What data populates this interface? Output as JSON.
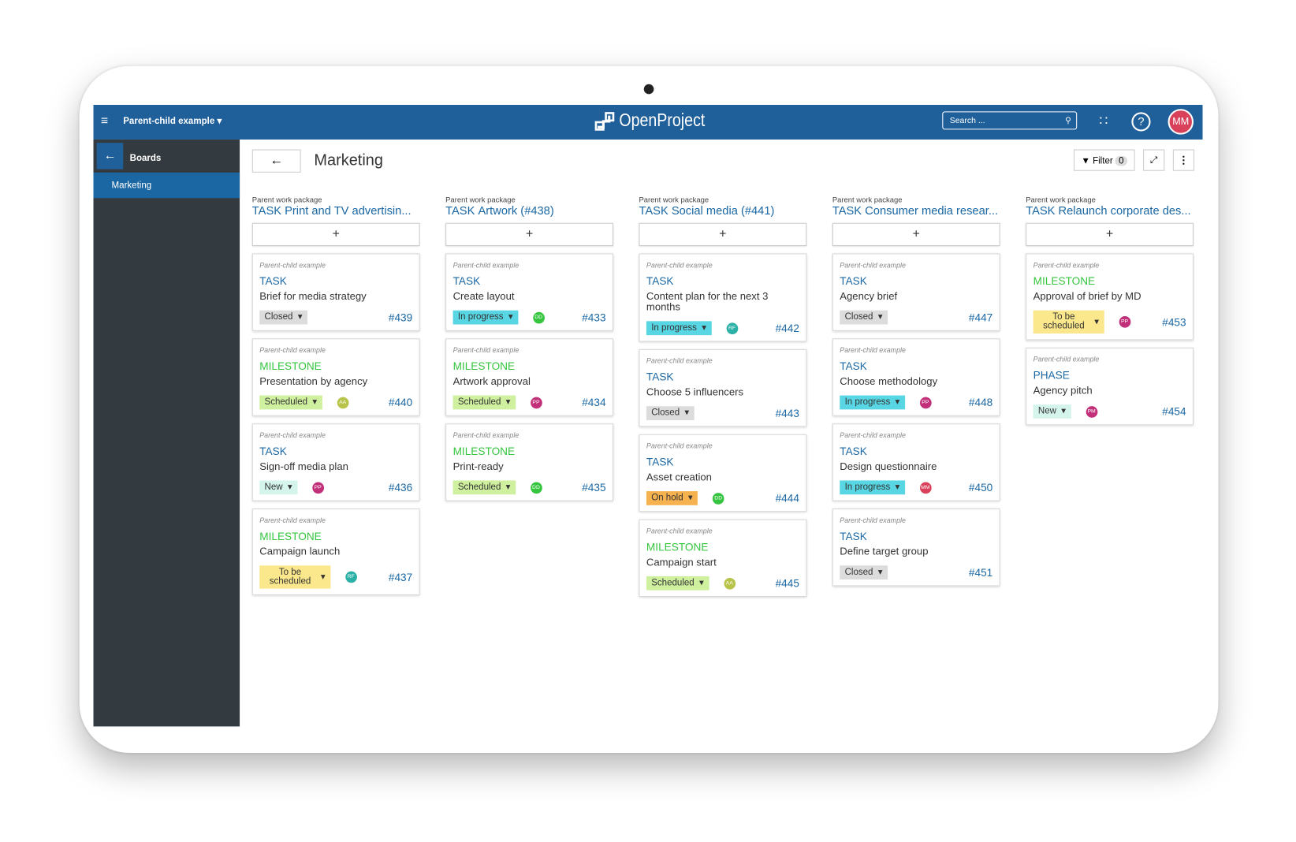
{
  "app": {
    "project": "Parent-child example",
    "logo": "OpenProject",
    "search_placeholder": "Search ...",
    "avatar": "MM"
  },
  "sidebar": {
    "title": "Boards",
    "items": [
      "Marketing"
    ]
  },
  "board": {
    "title": "Marketing",
    "filter_label": "Filter",
    "filter_count": "0",
    "add": "+"
  },
  "columns": [
    {
      "caption": "Parent work package",
      "type": "TASK",
      "title": "Print and TV advertisin...",
      "cards": [
        {
          "project": "Parent-child example",
          "type": "TASK",
          "type_color": "#1a67a3",
          "subject": "Brief for media strategy",
          "status": "Closed",
          "status_color": "#dcdcdc",
          "id": "#439"
        },
        {
          "project": "Parent-child example",
          "type": "MILESTONE",
          "type_color": "#35c53f",
          "subject": "Presentation by agency",
          "status": "Scheduled",
          "status_color": "#cff09e",
          "assignee": "AA",
          "assignee_color": "#b8c34a",
          "id": "#440"
        },
        {
          "project": "Parent-child example",
          "type": "TASK",
          "type_color": "#1a67a3",
          "subject": "Sign-off media plan",
          "status": "New",
          "status_color": "#d5f5ec",
          "assignee": "PP",
          "assignee_color": "#c2307a",
          "id": "#436"
        },
        {
          "project": "Parent-child example",
          "type": "MILESTONE",
          "type_color": "#35c53f",
          "subject": "Campaign launch",
          "status": "To be scheduled",
          "status_color": "#fbe88d",
          "assignee": "RF",
          "assignee_color": "#2bb0a6",
          "id": "#437"
        }
      ]
    },
    {
      "caption": "Parent work package",
      "type": "TASK",
      "title": "Artwork (#438)",
      "cards": [
        {
          "project": "Parent-child example",
          "type": "TASK",
          "type_color": "#1a67a3",
          "subject": "Create layout",
          "status": "In progress",
          "status_color": "#59d6e3",
          "assignee": "DD",
          "assignee_color": "#35c53f",
          "id": "#433"
        },
        {
          "project": "Parent-child example",
          "type": "MILESTONE",
          "type_color": "#35c53f",
          "subject": "Artwork approval",
          "status": "Scheduled",
          "status_color": "#cff09e",
          "assignee": "PP",
          "assignee_color": "#c2307a",
          "id": "#434"
        },
        {
          "project": "Parent-child example",
          "type": "MILESTONE",
          "type_color": "#35c53f",
          "subject": "Print-ready",
          "status": "Scheduled",
          "status_color": "#cff09e",
          "assignee": "DD",
          "assignee_color": "#35c53f",
          "id": "#435"
        }
      ]
    },
    {
      "caption": "Parent work package",
      "type": "TASK",
      "title": "Social media (#441)",
      "cards": [
        {
          "project": "Parent-child example",
          "type": "TASK",
          "type_color": "#1a67a3",
          "subject": "Content plan for the next 3 months",
          "status": "In progress",
          "status_color": "#59d6e3",
          "assignee": "RF",
          "assignee_color": "#2bb0a6",
          "id": "#442"
        },
        {
          "project": "Parent-child example",
          "type": "TASK",
          "type_color": "#1a67a3",
          "subject": "Choose 5 influencers",
          "status": "Closed",
          "status_color": "#dcdcdc",
          "id": "#443"
        },
        {
          "project": "Parent-child example",
          "type": "TASK",
          "type_color": "#1a67a3",
          "subject": "Asset creation",
          "status": "On hold",
          "status_color": "#f7b250",
          "assignee": "DD",
          "assignee_color": "#35c53f",
          "id": "#444"
        },
        {
          "project": "Parent-child example",
          "type": "MILESTONE",
          "type_color": "#35c53f",
          "subject": "Campaign start",
          "status": "Scheduled",
          "status_color": "#cff09e",
          "assignee": "AA",
          "assignee_color": "#b8c34a",
          "id": "#445"
        }
      ]
    },
    {
      "caption": "Parent work package",
      "type": "TASK",
      "title": "Consumer media resear...",
      "cards": [
        {
          "project": "Parent-child example",
          "type": "TASK",
          "type_color": "#1a67a3",
          "subject": "Agency brief",
          "status": "Closed",
          "status_color": "#dcdcdc",
          "id": "#447"
        },
        {
          "project": "Parent-child example",
          "type": "TASK",
          "type_color": "#1a67a3",
          "subject": "Choose methodology",
          "status": "In progress",
          "status_color": "#59d6e3",
          "assignee": "PP",
          "assignee_color": "#c2307a",
          "id": "#448"
        },
        {
          "project": "Parent-child example",
          "type": "TASK",
          "type_color": "#1a67a3",
          "subject": "Design questionnaire",
          "status": "In progress",
          "status_color": "#59d6e3",
          "assignee": "MM",
          "assignee_color": "#d9405a",
          "id": "#450"
        },
        {
          "project": "Parent-child example",
          "type": "TASK",
          "type_color": "#1a67a3",
          "subject": "Define target group",
          "status": "Closed",
          "status_color": "#dcdcdc",
          "id": "#451"
        }
      ]
    },
    {
      "caption": "Parent work package",
      "type": "TASK",
      "title": "Relaunch corporate des...",
      "cards": [
        {
          "project": "Parent-child example",
          "type": "MILESTONE",
          "type_color": "#35c53f",
          "subject": "Approval of brief by MD",
          "status": "To be scheduled",
          "status_color": "#fbe88d",
          "assignee": "PP",
          "assignee_color": "#c2307a",
          "id": "#453"
        },
        {
          "project": "Parent-child example",
          "type": "PHASE",
          "type_color": "#1a67a3",
          "subject": "Agency pitch",
          "status": "New",
          "status_color": "#d5f5ec",
          "assignee": "PM",
          "assignee_color": "#c2307a",
          "id": "#454"
        }
      ]
    }
  ]
}
